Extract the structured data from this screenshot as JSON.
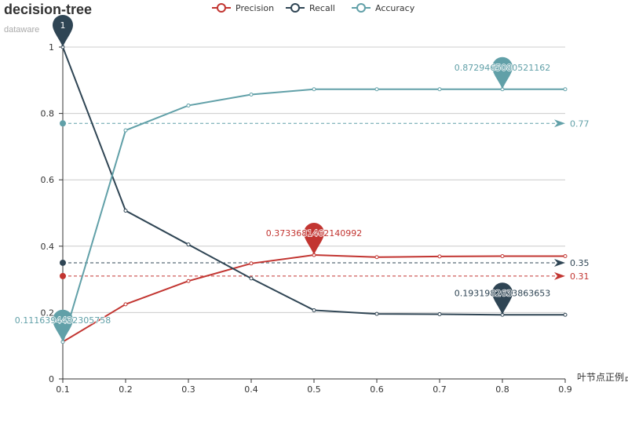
{
  "title": "decision-tree",
  "subtitle": "dataware",
  "chart_data": {
    "type": "line",
    "title": "decision-tree",
    "subtitle": "dataware",
    "xlabel": "叶节点正例占",
    "ylabel": "",
    "x": [
      0.1,
      0.2,
      0.3,
      0.4,
      0.5,
      0.6,
      0.7,
      0.8,
      0.9
    ],
    "x_ticks": [
      "0.1",
      "0.2",
      "0.3",
      "0.4",
      "0.5",
      "0.6",
      "0.7",
      "0.8",
      "0.9"
    ],
    "ylim": [
      0,
      1
    ],
    "y_ticks": [
      "0",
      "0.2",
      "0.4",
      "0.6",
      "0.8",
      "1"
    ],
    "grid": true,
    "legend_position": "top-center",
    "series": [
      {
        "name": "Precision",
        "color": "#c23531",
        "values": [
          0.1116,
          0.225,
          0.295,
          0.348,
          0.3734,
          0.367,
          0.369,
          0.37,
          0.37
        ],
        "max_marker": {
          "x": 0.5,
          "label": "0.3733681462140992"
        },
        "average": {
          "value": 0.31,
          "label": "0.31"
        }
      },
      {
        "name": "Recall",
        "color": "#2f4554",
        "values": [
          1.0,
          0.507,
          0.405,
          0.303,
          0.207,
          0.196,
          0.195,
          0.1932,
          0.1932
        ],
        "max_marker": {
          "x": 0.1,
          "label": "1"
        },
        "min_marker": {
          "x": 0.8,
          "label": "0.1931982633863653"
        },
        "average": {
          "value": 0.35,
          "label": "0.35"
        }
      },
      {
        "name": "Accuracy",
        "color": "#61a0a8",
        "values": [
          0.1116,
          0.749,
          0.824,
          0.857,
          0.8729,
          0.8729,
          0.8729,
          0.8729,
          0.8729
        ],
        "max_marker": {
          "x": 0.8,
          "label": "0.8729465080521162"
        },
        "min_marker": {
          "x": 0.1,
          "label": "0.1116394432305758"
        },
        "average": {
          "value": 0.77,
          "label": "0.77"
        }
      }
    ]
  }
}
